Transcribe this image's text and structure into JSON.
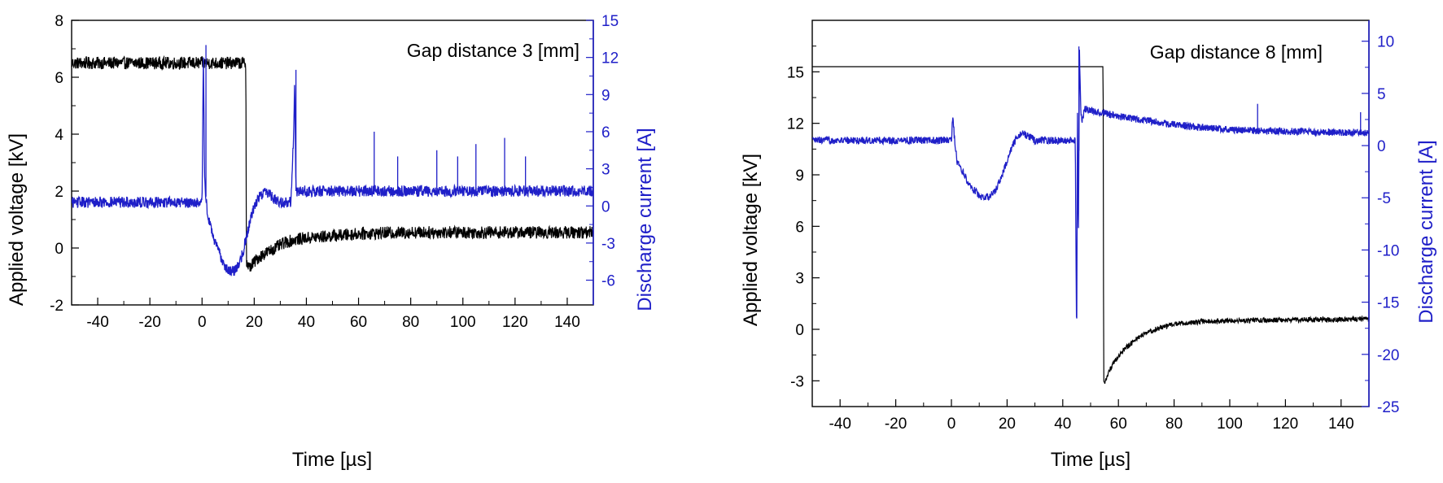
{
  "chart_data": [
    {
      "type": "line",
      "annotation": "Gap distance 3 [mm]",
      "xlabel": "Time [µs]",
      "ylabel": "Applied voltage [kV]",
      "ylabel_right": "Discharge current [A]",
      "xlim": [
        -50,
        150
      ],
      "ylim": [
        -2,
        8
      ],
      "ylim_right": [
        -8,
        15
      ],
      "xticks": [
        -40,
        -20,
        0,
        20,
        40,
        60,
        80,
        100,
        120,
        140
      ],
      "yticks": [
        -2,
        0,
        2,
        4,
        6,
        8
      ],
      "yticks_right": [
        -6,
        -3,
        0,
        3,
        6,
        9,
        12,
        15
      ],
      "grid": false,
      "colors": {
        "voltage": "#000000",
        "current": "#1f1fc8"
      },
      "series": [
        {
          "axis": "left",
          "color": "#000000",
          "noise": 0.22,
          "x": [
            -50,
            0,
            0.5,
            16.8,
            17,
            18,
            22,
            28,
            32,
            36,
            40,
            60,
            80,
            150
          ],
          "y": [
            6.5,
            6.5,
            6.5,
            6.5,
            -0.5,
            -0.7,
            -0.3,
            0.0,
            0.2,
            0.3,
            0.35,
            0.5,
            0.55,
            0.55
          ]
        },
        {
          "axis": "right",
          "color": "#1f1fc8",
          "noise": 0.45,
          "x": [
            -50,
            0,
            0.5,
            1,
            2,
            3,
            5,
            8,
            10,
            12,
            14,
            16,
            18,
            20,
            22,
            24,
            26,
            28,
            30,
            34,
            35,
            35.5,
            36,
            150
          ],
          "y": [
            0.3,
            0.3,
            12.0,
            2.0,
            -0.5,
            -1.5,
            -3.0,
            -4.5,
            -5.2,
            -5.3,
            -4.8,
            -3.5,
            -1.5,
            0.0,
            0.8,
            1.2,
            1.0,
            0.5,
            0.3,
            0.3,
            5.0,
            10.0,
            1.2,
            1.2
          ]
        }
      ],
      "spikes": [
        {
          "x": 1.5,
          "y": 13.0
        },
        {
          "x": 36,
          "y": 11.0
        },
        {
          "x": 66,
          "y": 6.0
        },
        {
          "x": 75,
          "y": 4.0
        },
        {
          "x": 90,
          "y": 4.5
        },
        {
          "x": 98,
          "y": 4.0
        },
        {
          "x": 105,
          "y": 5.0
        },
        {
          "x": 116,
          "y": 5.5
        },
        {
          "x": 124,
          "y": 4.0
        }
      ]
    },
    {
      "type": "line",
      "annotation": "Gap distance 8 [mm]",
      "xlabel": "Time [µs]",
      "ylabel": "Applied voltage [kV]",
      "ylabel_right": "Discharge current [A]",
      "xlim": [
        -50,
        150
      ],
      "ylim": [
        -4.5,
        18
      ],
      "ylim_right": [
        -25,
        12
      ],
      "xticks": [
        -40,
        -20,
        0,
        20,
        40,
        60,
        80,
        100,
        120,
        140
      ],
      "yticks": [
        -3,
        0,
        3,
        6,
        9,
        12,
        15
      ],
      "yticks_right": [
        -25,
        -20,
        -15,
        -10,
        -5,
        0,
        5,
        10
      ],
      "grid": false,
      "colors": {
        "voltage": "#000000",
        "current": "#1f1fc8"
      },
      "series": [
        {
          "axis": "left",
          "color": "#000000",
          "noise": 0.15,
          "x": [
            -50,
            54.5,
            54.7,
            55,
            58,
            62,
            66,
            70,
            75,
            80,
            90,
            100,
            120,
            150
          ],
          "y": [
            15.3,
            15.3,
            -3.2,
            -3.1,
            -2.0,
            -1.2,
            -0.6,
            -0.2,
            0.1,
            0.3,
            0.45,
            0.5,
            0.55,
            0.6
          ],
          "note": "flat segment drawn without noise"
        },
        {
          "axis": "right",
          "color": "#1f1fc8",
          "noise": 0.35,
          "x": [
            -50,
            0,
            0.5,
            1,
            2,
            4,
            6,
            8,
            10,
            12,
            14,
            16,
            18,
            20,
            22,
            24,
            26,
            28,
            30,
            44.5,
            45,
            45.3,
            45.6,
            46,
            46.5,
            47,
            48,
            60,
            80,
            100,
            150
          ],
          "y": [
            0.5,
            0.5,
            3.0,
            1.0,
            -1.5,
            -2.5,
            -3.5,
            -4.2,
            -4.8,
            -5.0,
            -4.8,
            -4.2,
            -3.0,
            -1.5,
            0.0,
            1.0,
            1.2,
            0.8,
            0.5,
            0.5,
            -20.0,
            5.0,
            -10.0,
            9.0,
            3.0,
            2.5,
            3.5,
            2.8,
            2.0,
            1.5,
            1.2
          ]
        }
      ],
      "spikes": [
        {
          "x": 45.8,
          "y": 9.5
        },
        {
          "x": 110,
          "y": 4.0
        },
        {
          "x": 147,
          "y": 3.2
        }
      ]
    }
  ]
}
